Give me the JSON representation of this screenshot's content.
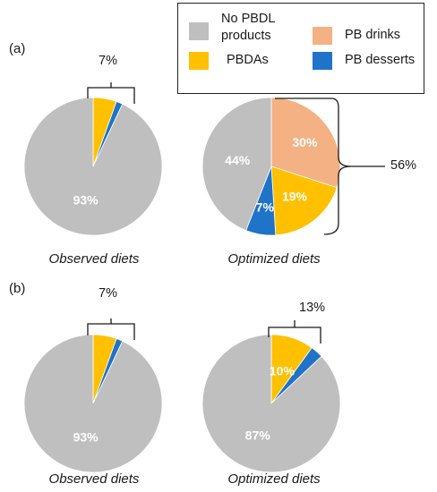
{
  "legend": {
    "items": [
      {
        "label": "No PBDL products",
        "color": "#bfbfbf"
      },
      {
        "label": "PBDAs",
        "color": "#ffc000"
      },
      {
        "label": "PB drinks",
        "color": "#f4b183"
      },
      {
        "label": "PB desserts",
        "color": "#1f73c8"
      }
    ]
  },
  "panels": [
    {
      "label": "(a)"
    },
    {
      "label": "(b)"
    }
  ],
  "chart_data": [
    {
      "type": "pie",
      "panel": "(a)",
      "caption": "Observed diets",
      "slices": [
        {
          "name": "PBDAs",
          "value": 5.5,
          "color": "#ffc000"
        },
        {
          "name": "PB desserts",
          "value": 1.5,
          "color": "#1f73c8"
        },
        {
          "name": "No PBDL products",
          "value": 93,
          "color": "#bfbfbf"
        }
      ],
      "data_labels": [
        {
          "slice": "No PBDL products",
          "text": "93%"
        }
      ],
      "bracket_label": "7%"
    },
    {
      "type": "pie",
      "panel": "(a)",
      "caption": "Optimized diets",
      "slices": [
        {
          "name": "PB drinks",
          "value": 30,
          "color": "#f4b183"
        },
        {
          "name": "PBDAs",
          "value": 19,
          "color": "#ffc000"
        },
        {
          "name": "PB desserts",
          "value": 7,
          "color": "#1f73c8"
        },
        {
          "name": "No PBDL products",
          "value": 44,
          "color": "#bfbfbf"
        }
      ],
      "data_labels": [
        {
          "slice": "PB drinks",
          "text": "30%"
        },
        {
          "slice": "PBDAs",
          "text": "19%"
        },
        {
          "slice": "PB desserts",
          "text": "7%"
        },
        {
          "slice": "No PBDL products",
          "text": "44%"
        }
      ],
      "bracket_label": "56%"
    },
    {
      "type": "pie",
      "panel": "(b)",
      "caption": "Observed diets",
      "slices": [
        {
          "name": "PBDAs",
          "value": 5.5,
          "color": "#ffc000"
        },
        {
          "name": "PB desserts",
          "value": 1.5,
          "color": "#1f73c8"
        },
        {
          "name": "No PBDL products",
          "value": 93,
          "color": "#bfbfbf"
        }
      ],
      "data_labels": [
        {
          "slice": "No PBDL products",
          "text": "93%"
        }
      ],
      "bracket_label": "7%"
    },
    {
      "type": "pie",
      "panel": "(b)",
      "caption": "Optimized diets",
      "slices": [
        {
          "name": "PBDAs",
          "value": 10,
          "color": "#ffc000"
        },
        {
          "name": "PB desserts",
          "value": 3,
          "color": "#1f73c8"
        },
        {
          "name": "No PBDL products",
          "value": 87,
          "color": "#bfbfbf"
        }
      ],
      "data_labels": [
        {
          "slice": "PBDAs",
          "text": "10%"
        },
        {
          "slice": "No PBDL products",
          "text": "87%"
        }
      ],
      "bracket_label": "13%"
    }
  ]
}
